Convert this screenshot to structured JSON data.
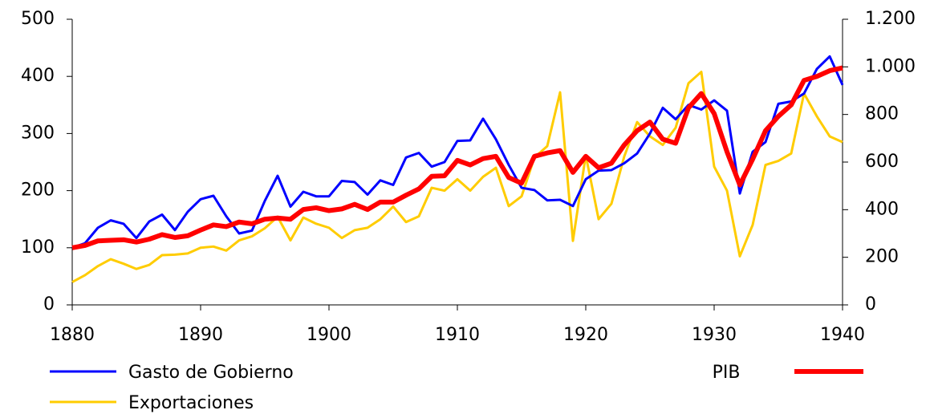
{
  "chart_data": {
    "type": "line",
    "x": [
      1880,
      1881,
      1882,
      1883,
      1884,
      1885,
      1886,
      1887,
      1888,
      1889,
      1890,
      1891,
      1892,
      1893,
      1894,
      1895,
      1896,
      1897,
      1898,
      1899,
      1900,
      1901,
      1902,
      1903,
      1904,
      1905,
      1906,
      1907,
      1908,
      1909,
      1910,
      1911,
      1912,
      1913,
      1914,
      1915,
      1916,
      1917,
      1918,
      1919,
      1920,
      1921,
      1922,
      1923,
      1924,
      1925,
      1926,
      1927,
      1928,
      1929,
      1930,
      1931,
      1932,
      1933,
      1934,
      1935,
      1936,
      1937,
      1938,
      1939,
      1940
    ],
    "xlim": [
      1880,
      1940
    ],
    "xticks": [
      1880,
      1890,
      1900,
      1910,
      1920,
      1930,
      1940
    ],
    "ylim": [
      0,
      500
    ],
    "yticks": [
      0,
      100,
      200,
      300,
      400,
      500
    ],
    "y2lim": [
      0,
      1200
    ],
    "y2ticks": [
      0,
      200,
      400,
      600,
      800,
      {
        "value": 1000,
        "label": "1.000"
      },
      {
        "value": 1200,
        "label": "1.200"
      }
    ],
    "series": [
      {
        "name": "Gasto de Gobierno",
        "color": "#0000ff",
        "values": [
          100,
          108,
          135,
          148,
          142,
          117,
          146,
          158,
          131,
          163,
          185,
          191,
          155,
          125,
          130,
          182,
          226,
          172,
          198,
          190,
          190,
          217,
          215,
          193,
          218,
          210,
          258,
          266,
          242,
          250,
          287,
          288,
          326,
          290,
          245,
          205,
          201,
          183,
          184,
          173,
          220,
          235,
          236,
          248,
          265,
          300,
          345,
          325,
          350,
          342,
          358,
          340,
          195,
          268,
          285,
          352,
          356,
          370,
          413,
          435,
          385
        ]
      },
      {
        "name": "PIB",
        "color": "#ff0000",
        "values": [
          100,
          104,
          112,
          113,
          114,
          110,
          115,
          123,
          118,
          121,
          131,
          140,
          137,
          145,
          142,
          150,
          152,
          150,
          167,
          170,
          165,
          168,
          176,
          167,
          180,
          180,
          192,
          203,
          225,
          226,
          253,
          245,
          256,
          260,
          223,
          213,
          260,
          266,
          270,
          232,
          260,
          240,
          248,
          280,
          305,
          320,
          290,
          283,
          345,
          370,
          335,
          268,
          210,
          255,
          305,
          330,
          350,
          393,
          400,
          410,
          415
        ]
      },
      {
        "name": "Exportaciones",
        "color": "#ffcc00",
        "axis": "y2",
        "values": [
          96,
          125,
          163,
          192,
          173,
          151,
          168,
          209,
          211,
          216,
          240,
          245,
          228,
          271,
          288,
          322,
          370,
          271,
          367,
          341,
          324,
          281,
          314,
          324,
          360,
          413,
          348,
          372,
          492,
          480,
          528,
          480,
          538,
          576,
          415,
          456,
          619,
          667,
          893,
          269,
          629,
          360,
          425,
          624,
          768,
          708,
          672,
          744,
          931,
          979,
          581,
          480,
          204,
          336,
          588,
          605,
          636,
          888,
          792,
          708,
          684
        ]
      }
    ]
  }
}
